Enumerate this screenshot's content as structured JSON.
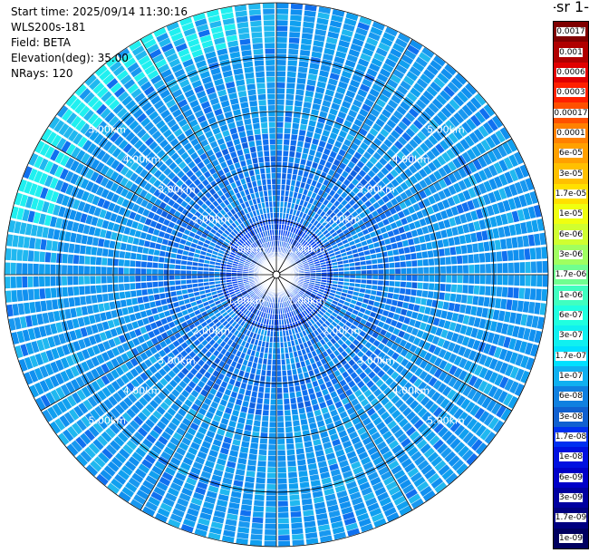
{
  "header": {
    "start_time": "Start time: 2025/09/14 11:30:16",
    "instrument": "WLS200s-181",
    "field": "Field: BETA",
    "elevation": "Elevation(deg): 35.00",
    "nrays": "NRays: 120"
  },
  "colorbar": {
    "units_label": "-1 sr-",
    "ticks": [
      "0.0017",
      "0.001",
      "0.0006",
      "0.0003",
      "0.00017",
      "0.0001",
      "6e-05",
      "3e-05",
      "1.7e-05",
      "1e-05",
      "6e-06",
      "3e-06",
      "1.7e-06",
      "1e-06",
      "6e-07",
      "3e-07",
      "1.7e-07",
      "1e-07",
      "6e-08",
      "3e-08",
      "1.7e-08",
      "1e-08",
      "6e-09",
      "3e-09",
      "1.7e-09",
      "1e-09"
    ],
    "colors": [
      "#7f0000",
      "#b00000",
      "#e00000",
      "#ff2000",
      "#ff5000",
      "#ff8000",
      "#ffa000",
      "#ffc000",
      "#ffe000",
      "#f0ff10",
      "#d0ff30",
      "#a0ff60",
      "#70ff90",
      "#40ffc0",
      "#20ffe0",
      "#10f0f0",
      "#00e0ff",
      "#10b0f0",
      "#1080e0",
      "#1060d0",
      "#0030f0",
      "#0010e0",
      "#0000c8",
      "#0000a0",
      "#000080",
      "#000060"
    ]
  },
  "chart_data": {
    "type": "heatmap",
    "projection": "polar",
    "field": "BETA",
    "elevation_deg": 35.0,
    "n_rays": 120,
    "range_rings_km": [
      1,
      2,
      3,
      4,
      5
    ],
    "range_ring_labels": [
      "1.00km",
      "2.00km",
      "3.00km",
      "4.00km",
      "5.00km"
    ],
    "max_range_km": 5.0,
    "value_range": [
      1e-09,
      0.0017
    ]
  }
}
